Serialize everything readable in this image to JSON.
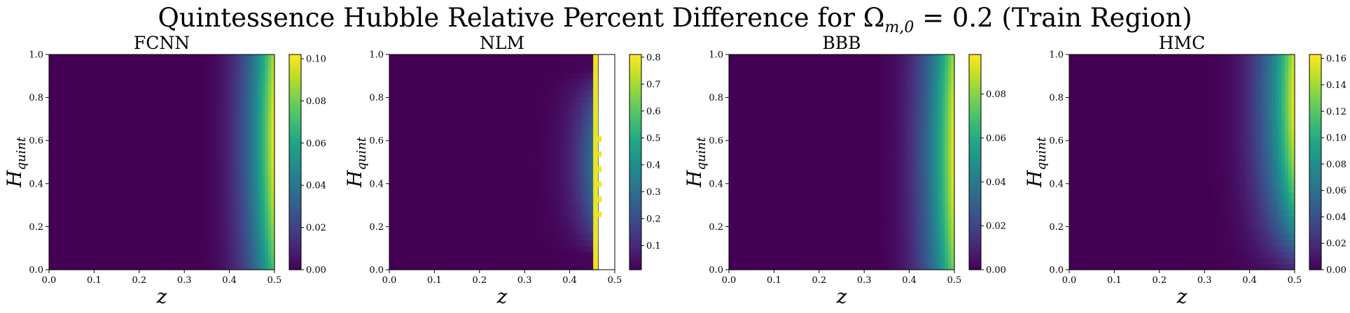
{
  "figure": {
    "title_prefix": "Quintessence Hubble Relative Percent Difference for ",
    "title_symbol": "Ω",
    "title_subscript": "m,0",
    "title_suffix": " = 0.2 (Train Region)"
  },
  "chart_data": [
    {
      "type": "heatmap",
      "title": "FCNN",
      "xlabel": "z",
      "ylabel": "H_quint",
      "xlim": [
        0.0,
        0.5
      ],
      "ylim": [
        0.0,
        1.0
      ],
      "xticks": [
        "0.0",
        "0.1",
        "0.2",
        "0.3",
        "0.4",
        "0.5"
      ],
      "yticks": [
        "0.0",
        "0.2",
        "0.4",
        "0.6",
        "0.8",
        "1.0"
      ],
      "colorbar": {
        "min": 0.0,
        "max": 0.102,
        "ticks": [
          "0.00",
          "0.02",
          "0.04",
          "0.06",
          "0.08",
          "0.10"
        ],
        "tick_values": [
          0.0,
          0.02,
          0.04,
          0.06,
          0.08,
          0.1
        ]
      },
      "colormap": "viridis",
      "field": {
        "z_onset": 0.3,
        "exponent": 3.2,
        "peak_y": 0.62,
        "y_spread": 0.7,
        "nan_region": null
      }
    },
    {
      "type": "heatmap",
      "title": "NLM",
      "xlabel": "z",
      "ylabel": "H_quint",
      "xlim": [
        0.0,
        0.5
      ],
      "ylim": [
        0.0,
        1.0
      ],
      "xticks": [
        "0.0",
        "0.1",
        "0.2",
        "0.3",
        "0.4",
        "0.5"
      ],
      "yticks": [
        "0.0",
        "0.2",
        "0.4",
        "0.6",
        "0.8",
        "1.0"
      ],
      "colorbar": {
        "min": 0.01,
        "max": 0.81,
        "ticks": [
          "0.1",
          "0.2",
          "0.3",
          "0.4",
          "0.5",
          "0.6",
          "0.7",
          "0.8"
        ],
        "tick_values": [
          0.1,
          0.2,
          0.3,
          0.4,
          0.5,
          0.6,
          0.7,
          0.8
        ]
      },
      "colormap": "viridis",
      "field": {
        "z_onset": 0.25,
        "exponent": 4.5,
        "peak_y": 0.5,
        "y_spread": 5.0,
        "nan_region": [
          0.463,
          0.5
        ]
      }
    },
    {
      "type": "heatmap",
      "title": "BBB",
      "xlabel": "z",
      "ylabel": "H_quint",
      "xlim": [
        0.0,
        0.5
      ],
      "ylim": [
        0.0,
        1.0
      ],
      "xticks": [
        "0.0",
        "0.1",
        "0.2",
        "0.3",
        "0.4",
        "0.5"
      ],
      "yticks": [
        "0.0",
        "0.2",
        "0.4",
        "0.6",
        "0.8",
        "1.0"
      ],
      "colorbar": {
        "min": 0.0,
        "max": 0.098,
        "ticks": [
          "0.00",
          "0.02",
          "0.04",
          "0.06",
          "0.08"
        ],
        "tick_values": [
          0.0,
          0.02,
          0.04,
          0.06,
          0.08
        ]
      },
      "colormap": "viridis",
      "field": {
        "z_onset": 0.3,
        "exponent": 3.0,
        "peak_y": 0.55,
        "y_spread": 0.6,
        "nan_region": null
      }
    },
    {
      "type": "heatmap",
      "title": "HMC",
      "xlabel": "z",
      "ylabel": "H_quint",
      "xlim": [
        0.0,
        0.5
      ],
      "ylim": [
        0.0,
        1.0
      ],
      "xticks": [
        "0.0",
        "0.1",
        "0.2",
        "0.3",
        "0.4",
        "0.5"
      ],
      "yticks": [
        "0.0",
        "0.2",
        "0.4",
        "0.6",
        "0.8",
        "1.0"
      ],
      "colorbar": {
        "min": 0.0,
        "max": 0.163,
        "ticks": [
          "0.00",
          "0.02",
          "0.04",
          "0.06",
          "0.08",
          "0.10",
          "0.12",
          "0.14",
          "0.16"
        ],
        "tick_values": [
          0.0,
          0.02,
          0.04,
          0.06,
          0.08,
          0.1,
          0.12,
          0.14,
          0.16
        ]
      },
      "colormap": "viridis",
      "field": {
        "z_onset": 0.28,
        "exponent": 3.2,
        "peak_y": 0.8,
        "y_spread": 1.4,
        "nan_region": null
      }
    }
  ]
}
